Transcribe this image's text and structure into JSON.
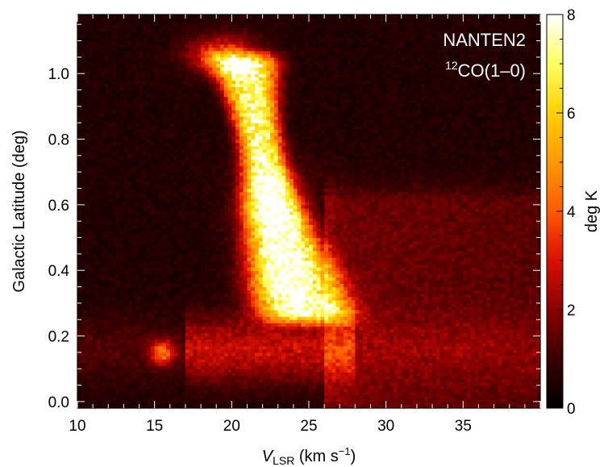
{
  "chart_data": {
    "type": "heatmap",
    "xlabel": {
      "main": "V",
      "sub": "LSR",
      "unit_pre": " (km s",
      "unit_sup": "−1",
      "unit_post": ")"
    },
    "ylabel": "Galactic Latitude (deg)",
    "xlim": [
      10,
      40
    ],
    "ylim": [
      -0.02,
      1.18
    ],
    "x_ticks": [
      10,
      15,
      20,
      25,
      30,
      35
    ],
    "y_ticks": [
      0.0,
      0.2,
      0.4,
      0.6,
      0.8,
      1.0
    ],
    "x_tick_labels": [
      "10",
      "15",
      "20",
      "25",
      "30",
      "35"
    ],
    "y_tick_labels": [
      "0.0",
      "0.2",
      "0.4",
      "0.6",
      "0.8",
      "1.0"
    ],
    "annotation": {
      "telescope": "NANTEN2",
      "line_sup": "12",
      "line_text": "CO(1–0)"
    },
    "colorbar": {
      "label": "deg K",
      "range": [
        0,
        8
      ],
      "ticks": [
        0,
        2,
        4,
        6,
        8
      ],
      "tick_labels": [
        "0",
        "2",
        "4",
        "6",
        "8"
      ],
      "colormap": [
        "#000000",
        "#3a0000",
        "#8a0000",
        "#d81000",
        "#ff5a00",
        "#ff9800",
        "#ffd000",
        "#ffff60",
        "#ffffff"
      ]
    },
    "emission_components": [
      {
        "name": "main",
        "v_range": [
          18,
          26
        ],
        "b_range": [
          0.22,
          1.08
        ],
        "peak": 7.8
      },
      {
        "name": "knot",
        "v": 15.5,
        "b": 0.15,
        "peak": 3.5
      },
      {
        "name": "diffuse",
        "v_range": [
          26,
          40
        ],
        "b_range": [
          0.0,
          0.7
        ],
        "peak": 1.2
      }
    ]
  }
}
